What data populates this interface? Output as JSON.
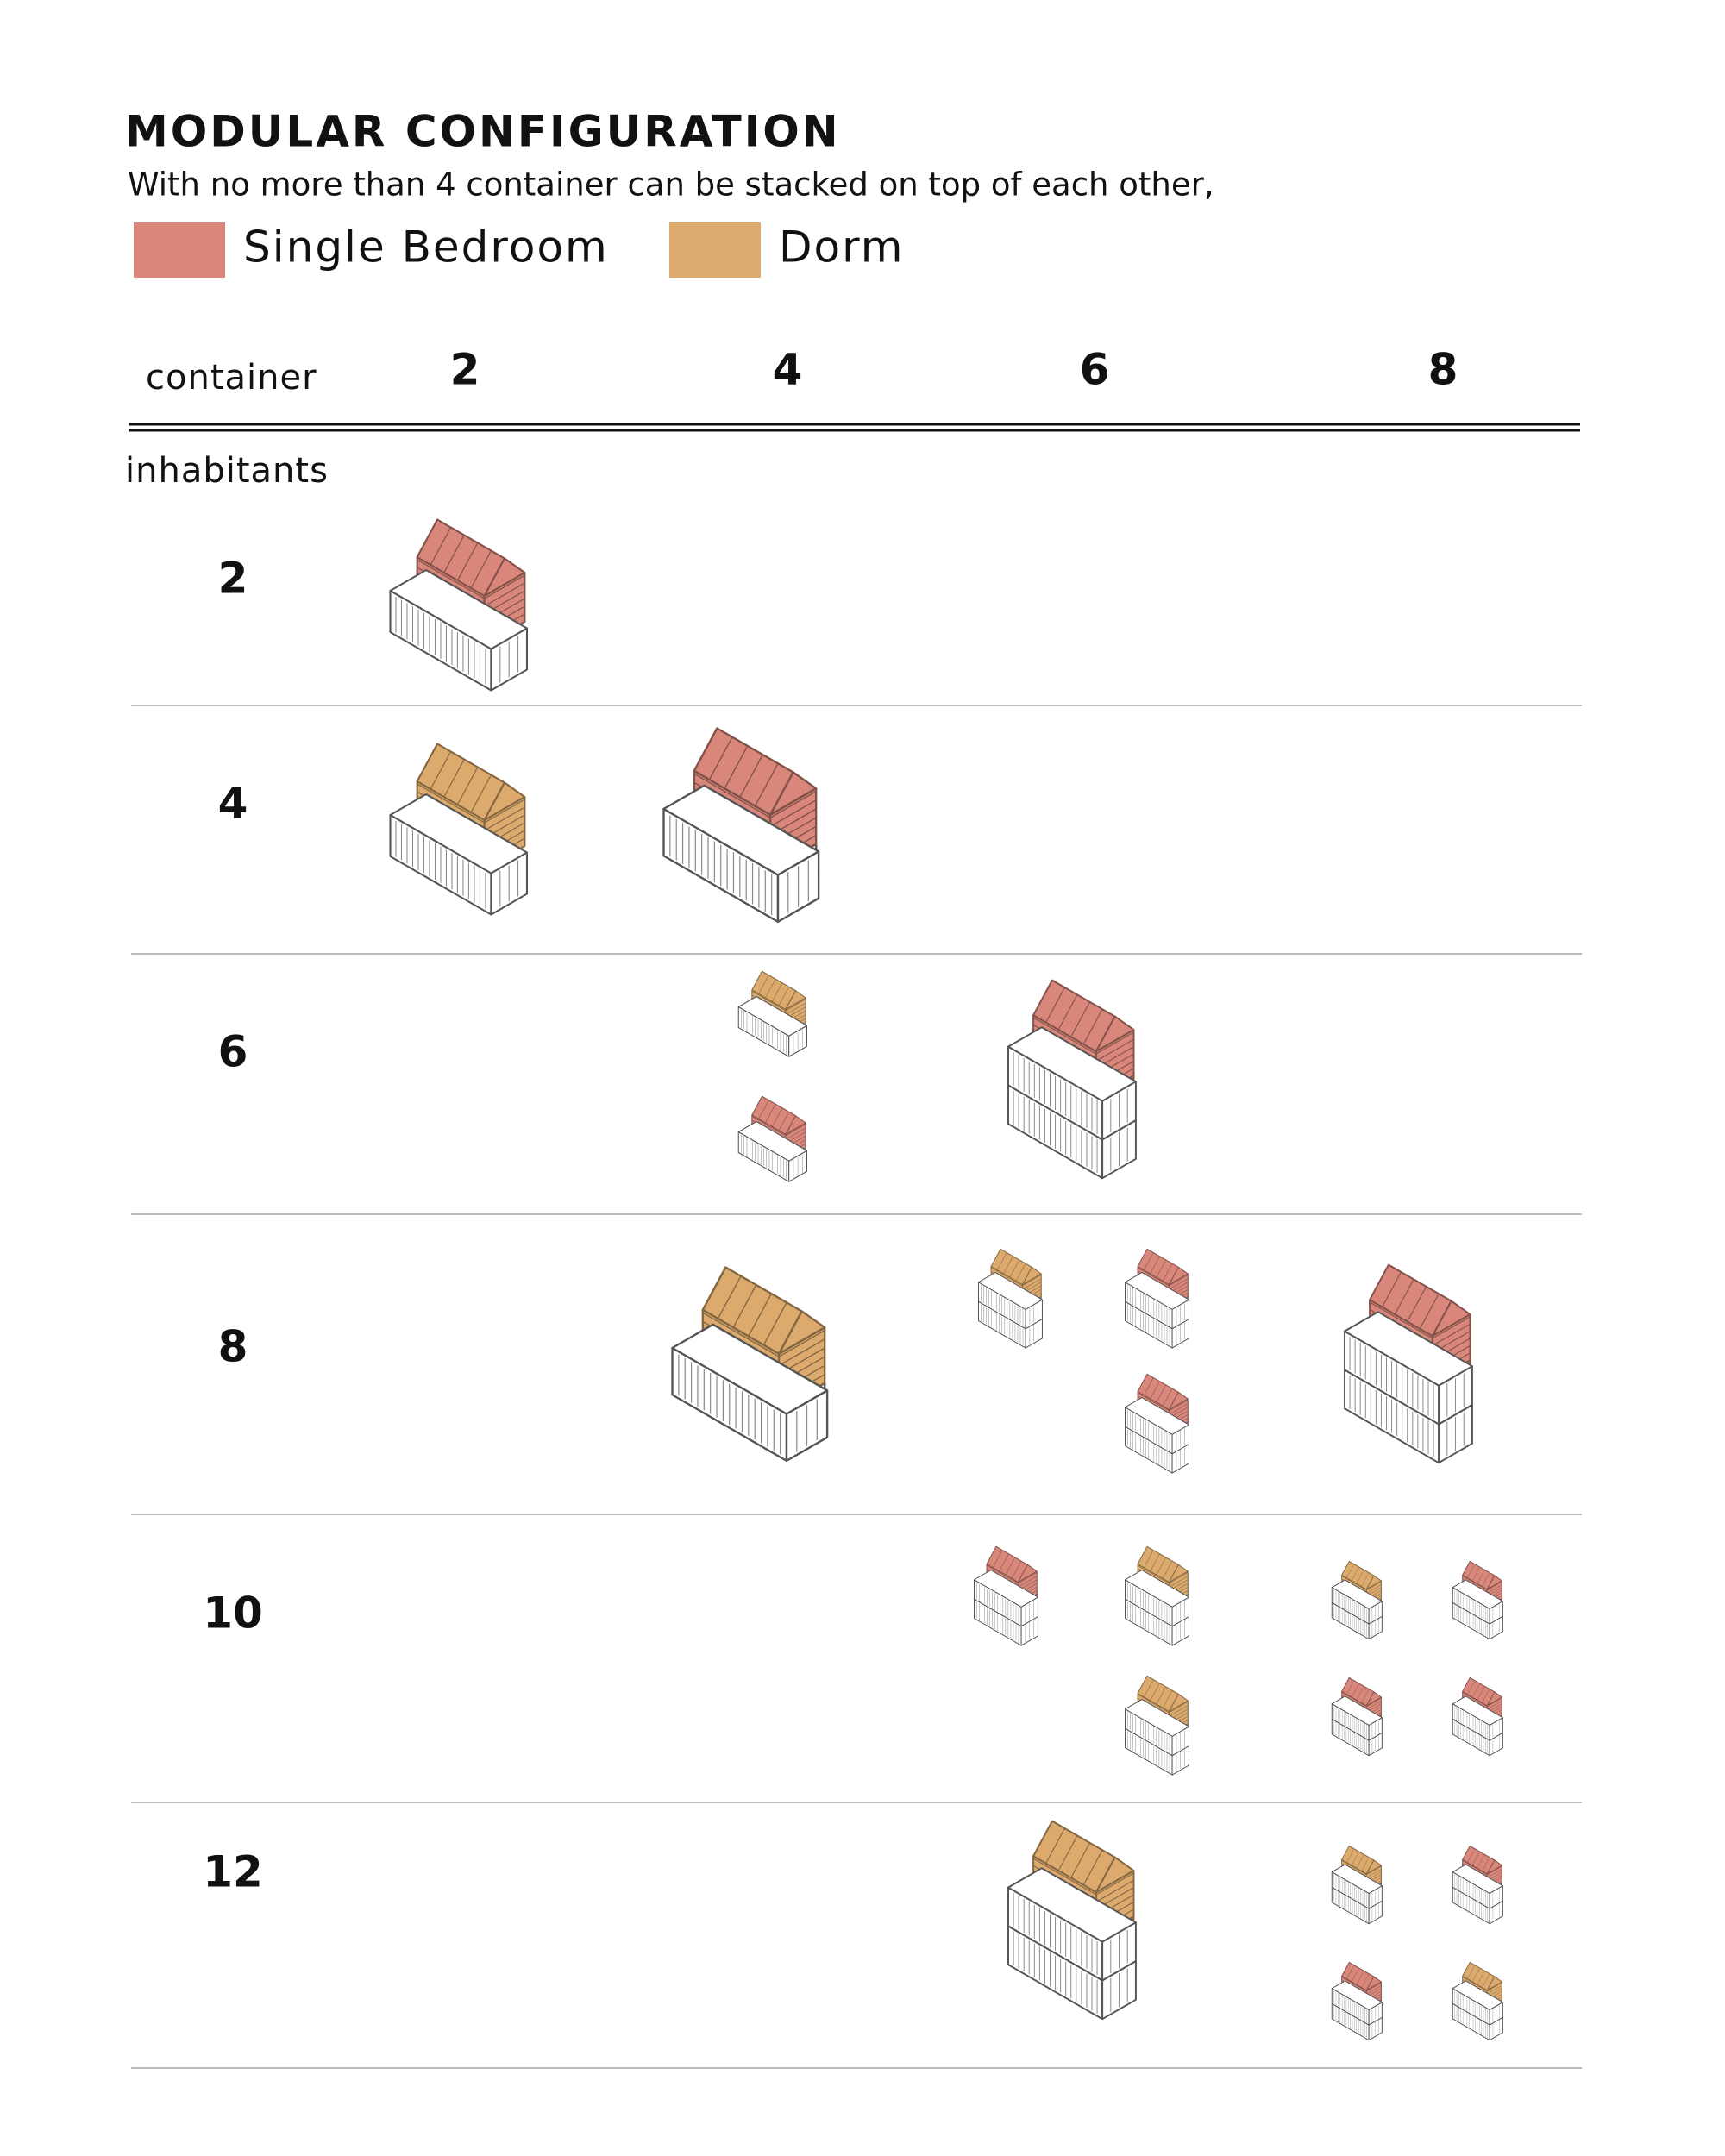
{
  "header": {
    "title": "MODULAR CONFIGURATION",
    "subtitle": "With no more than 4 container can be stacked on top of each other,"
  },
  "legend": [
    {
      "label": "Single Bedroom",
      "color": "#d9877a"
    },
    {
      "label": "Dorm",
      "color": "#dcaa6d"
    }
  ],
  "table": {
    "column_header": "container",
    "columns": [
      "2",
      "4",
      "6",
      "8"
    ],
    "row_header": "inhabitants",
    "rows": [
      "2",
      "4",
      "6",
      "8",
      "10",
      "12"
    ]
  }
}
